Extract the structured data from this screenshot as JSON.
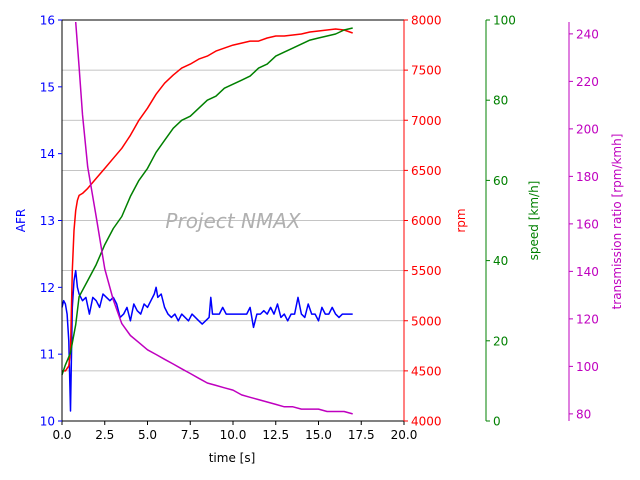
{
  "chart_data": {
    "type": "line",
    "title": "",
    "xlabel": "time [s]",
    "xlim": [
      0,
      20
    ],
    "x_ticks": [
      "0.0",
      "2.5",
      "5.0",
      "7.5",
      "10.0",
      "12.5",
      "15.0",
      "17.5",
      "20.0"
    ],
    "watermark": "Project NMAX",
    "grid": "horizontal lines on rpm axis",
    "axes": [
      {
        "id": "afr",
        "label": "AFR",
        "color": "#0000ff",
        "side": "left",
        "ylim": [
          10,
          16
        ],
        "ticks": [
          "10",
          "11",
          "12",
          "13",
          "14",
          "15",
          "16"
        ]
      },
      {
        "id": "rpm",
        "label": "rpm",
        "color": "#ff0000",
        "side": "right",
        "ylim": [
          4000,
          8000
        ],
        "ticks": [
          "4000",
          "4500",
          "5000",
          "5500",
          "6000",
          "6500",
          "7000",
          "7500",
          "8000"
        ]
      },
      {
        "id": "speed",
        "label": "speed [km/h]",
        "color": "#008000",
        "side": "right",
        "ylim": [
          0,
          100
        ],
        "ticks": [
          "0",
          "20",
          "40",
          "60",
          "80",
          "100"
        ]
      },
      {
        "id": "ratio",
        "label": "transmission ratio [rpm/kmh]",
        "color": "#bf00bf",
        "side": "right",
        "ylim": [
          77,
          245
        ],
        "ticks": [
          "80",
          "100",
          "120",
          "140",
          "160",
          "180",
          "200",
          "220",
          "240"
        ]
      }
    ],
    "series": [
      {
        "axis": "afr",
        "color": "#0000ff",
        "x": [
          0,
          0.1,
          0.2,
          0.3,
          0.4,
          0.5,
          0.6,
          0.7,
          0.8,
          0.9,
          1.0,
          1.2,
          1.4,
          1.6,
          1.8,
          2.0,
          2.2,
          2.4,
          2.6,
          2.8,
          3.0,
          3.2,
          3.4,
          3.6,
          3.8,
          4.0,
          4.2,
          4.4,
          4.6,
          4.8,
          5.0,
          5.2,
          5.4,
          5.5,
          5.6,
          5.8,
          6.0,
          6.2,
          6.4,
          6.6,
          6.8,
          7.0,
          7.2,
          7.4,
          7.6,
          7.8,
          8.0,
          8.2,
          8.4,
          8.6,
          8.7,
          8.8,
          9.0,
          9.2,
          9.4,
          9.6,
          9.8,
          10.0,
          10.2,
          10.4,
          10.6,
          10.8,
          11.0,
          11.2,
          11.4,
          11.6,
          11.8,
          12.0,
          12.2,
          12.4,
          12.6,
          12.8,
          13.0,
          13.2,
          13.4,
          13.6,
          13.8,
          14.0,
          14.2,
          14.4,
          14.6,
          14.8,
          15.0,
          15.2,
          15.4,
          15.6,
          15.8,
          16.0,
          16.2,
          16.4,
          16.6,
          16.8,
          17.0
        ],
        "y": [
          11.7,
          11.8,
          11.75,
          11.6,
          11.2,
          10.15,
          11.7,
          12.1,
          12.25,
          12.0,
          11.9,
          11.8,
          11.85,
          11.6,
          11.85,
          11.8,
          11.7,
          11.9,
          11.85,
          11.8,
          11.85,
          11.75,
          11.55,
          11.6,
          11.7,
          11.5,
          11.75,
          11.65,
          11.6,
          11.75,
          11.7,
          11.8,
          11.9,
          12.0,
          11.85,
          11.9,
          11.7,
          11.6,
          11.55,
          11.6,
          11.5,
          11.6,
          11.55,
          11.5,
          11.6,
          11.55,
          11.5,
          11.45,
          11.5,
          11.55,
          11.85,
          11.6,
          11.6,
          11.6,
          11.7,
          11.6,
          11.6,
          11.6,
          11.6,
          11.6,
          11.6,
          11.6,
          11.7,
          11.4,
          11.6,
          11.6,
          11.65,
          11.6,
          11.7,
          11.6,
          11.75,
          11.55,
          11.6,
          11.5,
          11.6,
          11.6,
          11.85,
          11.6,
          11.55,
          11.75,
          11.6,
          11.6,
          11.5,
          11.7,
          11.6,
          11.6,
          11.7,
          11.6,
          11.55,
          11.6,
          11.6,
          11.6,
          11.6
        ]
      },
      {
        "axis": "rpm",
        "color": "#ff0000",
        "x": [
          0,
          0.2,
          0.4,
          0.5,
          0.6,
          0.7,
          0.8,
          0.9,
          1.0,
          1.2,
          1.5,
          2.0,
          2.5,
          3.0,
          3.5,
          4.0,
          4.5,
          5.0,
          5.5,
          6.0,
          6.5,
          7.0,
          7.5,
          8.0,
          8.5,
          9.0,
          9.5,
          10.0,
          10.5,
          11.0,
          11.5,
          12.0,
          12.5,
          13.0,
          13.5,
          14.0,
          14.5,
          15.0,
          15.5,
          16.0,
          16.5,
          17.0
        ],
        "y": [
          4500,
          4500,
          4550,
          4700,
          5500,
          5900,
          6100,
          6200,
          6250,
          6270,
          6320,
          6420,
          6520,
          6620,
          6720,
          6850,
          7000,
          7120,
          7260,
          7370,
          7450,
          7520,
          7560,
          7610,
          7640,
          7690,
          7720,
          7750,
          7770,
          7790,
          7790,
          7820,
          7840,
          7840,
          7850,
          7860,
          7880,
          7890,
          7900,
          7910,
          7900,
          7870
        ]
      },
      {
        "axis": "speed",
        "color": "#008000",
        "x": [
          0,
          0.2,
          0.5,
          0.8,
          1.0,
          1.5,
          2.0,
          2.5,
          3.0,
          3.5,
          4.0,
          4.5,
          5.0,
          5.5,
          6.0,
          6.5,
          7.0,
          7.5,
          8.0,
          8.5,
          9.0,
          9.5,
          10.0,
          10.5,
          11.0,
          11.5,
          12.0,
          12.5,
          13.0,
          13.5,
          14.0,
          14.5,
          15.0,
          15.5,
          16.0,
          16.5,
          17.0
        ],
        "y": [
          11.5,
          14,
          17,
          24,
          31,
          35,
          39,
          44,
          48,
          51,
          56,
          60,
          63,
          67,
          70,
          73,
          75,
          76,
          78,
          80,
          81,
          83,
          84,
          85,
          86,
          88,
          89,
          91,
          92,
          93,
          94,
          95,
          95.5,
          96,
          96.5,
          97.5,
          98
        ]
      },
      {
        "axis": "ratio",
        "color": "#bf00bf",
        "x": [
          0.8,
          1.0,
          1.2,
          1.5,
          2.0,
          2.5,
          3.0,
          3.5,
          4.0,
          4.5,
          5.0,
          5.5,
          6.0,
          6.5,
          7.0,
          7.5,
          8.0,
          8.5,
          9.0,
          9.5,
          10.0,
          10.5,
          11.0,
          11.5,
          12.0,
          12.5,
          13.0,
          13.5,
          14.0,
          14.5,
          15.0,
          15.5,
          16.0,
          16.5,
          17.0
        ],
        "y": [
          245,
          226,
          206,
          184,
          163,
          141,
          128,
          118,
          113,
          110,
          107,
          105,
          103,
          101,
          99,
          97,
          95,
          93,
          92,
          91,
          90,
          88,
          87,
          86,
          85,
          84,
          83,
          83,
          82,
          82,
          82,
          81,
          81,
          81,
          80
        ]
      }
    ]
  }
}
